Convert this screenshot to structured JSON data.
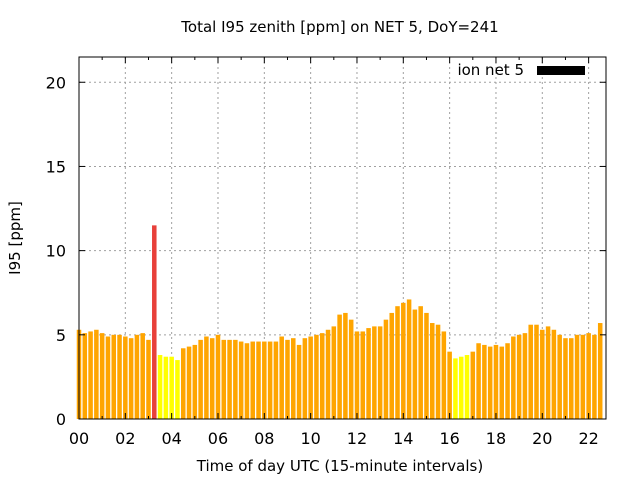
{
  "chart_data": {
    "type": "bar",
    "title": "Total I95 zenith [ppm] on NET 5, DoY=241",
    "xlabel": "Time of day UTC (15-minute intervals)",
    "ylabel": "I95 [ppm]",
    "ylim": [
      0,
      21.5
    ],
    "xlim": [
      0,
      22.75
    ],
    "bar_interval_hours": 0.25,
    "yticks": [
      0,
      5,
      10,
      15,
      20
    ],
    "xticks": [
      {
        "value": 0,
        "label": "00"
      },
      {
        "value": 2,
        "label": "02"
      },
      {
        "value": 4,
        "label": "04"
      },
      {
        "value": 6,
        "label": "06"
      },
      {
        "value": 8,
        "label": "08"
      },
      {
        "value": 10,
        "label": "10"
      },
      {
        "value": 12,
        "label": "12"
      },
      {
        "value": 14,
        "label": "14"
      },
      {
        "value": 16,
        "label": "16"
      },
      {
        "value": 18,
        "label": "18"
      },
      {
        "value": 20,
        "label": "20"
      },
      {
        "value": 22,
        "label": "22"
      }
    ],
    "grid": true,
    "legend": {
      "label": "ion net 5",
      "position": "top-right",
      "color": "#000000"
    },
    "colors": {
      "normal": "#ffa500",
      "low": "#ffff00",
      "high": "#e8403a"
    },
    "series": [
      {
        "values": [
          5.3,
          5.1,
          5.2,
          5.3,
          5.1,
          4.9,
          5.0,
          5.0,
          4.9,
          4.8,
          5.0,
          5.1,
          4.7,
          11.5,
          3.8,
          3.7,
          3.7,
          3.5,
          4.2,
          4.3,
          4.4,
          4.7,
          4.9,
          4.8,
          5.0,
          4.7,
          4.7,
          4.7,
          4.6,
          4.5,
          4.6,
          4.6,
          4.6,
          4.6,
          4.6,
          4.9,
          4.7,
          4.8,
          4.4,
          4.8,
          4.9,
          5.0,
          5.1,
          5.3,
          5.5,
          6.2,
          6.3,
          5.9,
          5.2,
          5.2,
          5.4,
          5.5,
          5.5,
          5.9,
          6.3,
          6.7,
          6.9,
          7.1,
          6.5,
          6.7,
          6.3,
          5.7,
          5.6,
          5.2,
          4.0,
          3.6,
          3.7,
          3.8,
          4.0,
          4.5,
          4.4,
          4.3,
          4.4,
          4.3,
          4.5,
          4.9,
          5.0,
          5.1,
          5.6,
          5.6,
          5.3,
          5.5,
          5.3,
          5.0,
          4.8,
          4.8,
          5.0,
          5.0,
          5.1,
          5.0,
          5.7
        ],
        "categories": [
          "normal",
          "normal",
          "normal",
          "normal",
          "normal",
          "normal",
          "normal",
          "normal",
          "normal",
          "normal",
          "normal",
          "normal",
          "normal",
          "high",
          "low",
          "low",
          "low",
          "low",
          "normal",
          "normal",
          "normal",
          "normal",
          "normal",
          "normal",
          "normal",
          "normal",
          "normal",
          "normal",
          "normal",
          "normal",
          "normal",
          "normal",
          "normal",
          "normal",
          "normal",
          "normal",
          "normal",
          "normal",
          "normal",
          "normal",
          "normal",
          "normal",
          "normal",
          "normal",
          "normal",
          "normal",
          "normal",
          "normal",
          "normal",
          "normal",
          "normal",
          "normal",
          "normal",
          "normal",
          "normal",
          "normal",
          "normal",
          "normal",
          "normal",
          "normal",
          "normal",
          "normal",
          "normal",
          "normal",
          "normal",
          "low",
          "low",
          "low",
          "normal",
          "normal",
          "normal",
          "normal",
          "normal",
          "normal",
          "normal",
          "normal",
          "normal",
          "normal",
          "normal",
          "normal",
          "normal",
          "normal",
          "normal",
          "normal",
          "normal",
          "normal",
          "normal",
          "normal",
          "normal",
          "normal",
          "normal"
        ]
      }
    ]
  }
}
